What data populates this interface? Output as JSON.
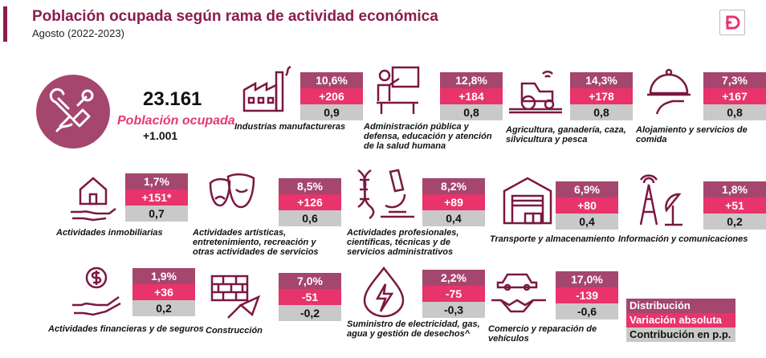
{
  "header": {
    "title": "Población ocupada según rama de actividad económica",
    "subtitle": "Agosto (2022-2023)"
  },
  "summary": {
    "total": "23.161",
    "label": "Población ocupada",
    "change": "+1.001"
  },
  "sectors": [
    {
      "label": "Industrias manufactureras",
      "pct": "10,6%",
      "var": "+206",
      "contrib": "0,9",
      "icon": "factory-icon"
    },
    {
      "label": "Administración pública y defensa, educación y atención de la salud humana",
      "pct": "12,8%",
      "var": "+184",
      "contrib": "0,8",
      "icon": "teacher-icon"
    },
    {
      "label": "Agricultura, ganadería, caza, silvicultura y pesca",
      "pct": "14,3%",
      "var": "+178",
      "contrib": "0,8",
      "icon": "tractor-icon"
    },
    {
      "label": "Alojamiento y servicios de comida",
      "pct": "7,3%",
      "var": "+167",
      "contrib": "0,8",
      "icon": "food-tray-icon"
    },
    {
      "label": "Actividades inmobiliarias",
      "pct": "1,7%",
      "var": "+151*",
      "contrib": "0,7",
      "icon": "house-hand-icon"
    },
    {
      "label": "Actividades artísticas, entretenimiento, recreación y otras actividades de servicios",
      "pct": "8,5%",
      "var": "+126",
      "contrib": "0,6",
      "icon": "theater-masks-icon"
    },
    {
      "label": "Actividades profesionales, científicas, técnicas y de servicios administrativos",
      "pct": "8,2%",
      "var": "+89",
      "contrib": "0,4",
      "icon": "microscope-dna-icon"
    },
    {
      "label": "Transporte y almacenamiento",
      "pct": "6,9%",
      "var": "+80",
      "contrib": "0,4",
      "icon": "warehouse-icon"
    },
    {
      "label": "Información y comunicaciones",
      "pct": "1,8%",
      "var": "+51",
      "contrib": "0,2",
      "icon": "antenna-icon"
    },
    {
      "label": "Actividades financieras y de seguros",
      "pct": "1,9%",
      "var": "+36",
      "contrib": "0,2",
      "icon": "money-hand-icon"
    },
    {
      "label": "Construcción",
      "pct": "7,0%",
      "var": "-51",
      "contrib": "-0,2",
      "icon": "brick-trowel-icon"
    },
    {
      "label": "Suministro de electricidad, gas, agua y gestión de desechos^",
      "pct": "2,2%",
      "var": "-75",
      "contrib": "-0,3",
      "icon": "water-electricity-icon"
    },
    {
      "label": "Comercio y reparación de vehículos",
      "pct": "17,0%",
      "var": "-139",
      "contrib": "-0,6",
      "icon": "car-handshake-icon"
    }
  ],
  "legend": {
    "distribution": "Distribución",
    "variation": "Variación absoluta",
    "contribution": "Contribución en p.p."
  },
  "colors": {
    "brand": "#8b1d4e",
    "distribution": "#a5466f",
    "variation": "#e8336b",
    "contribution": "#c9c9c9",
    "highlight": "#e33c6f"
  }
}
